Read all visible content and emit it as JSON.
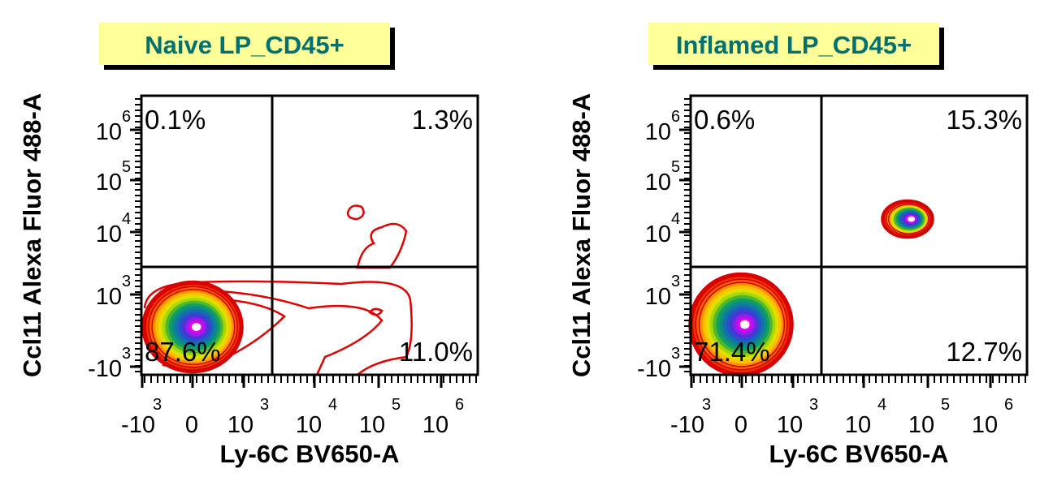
{
  "chart_data": [
    {
      "type": "contour",
      "title": "Naive LP_CD45+",
      "xlabel": "Ly-6C BV650-A",
      "ylabel": "Ccl11 Alexa Fluor 488-A",
      "x_scale": "biexponential",
      "y_scale": "biexponential",
      "x_ticks": [
        {
          "base": "-10",
          "exp": "3"
        },
        {
          "base": "0",
          "exp": ""
        },
        {
          "base": "10",
          "exp": "3"
        },
        {
          "base": "10",
          "exp": "4"
        },
        {
          "base": "10",
          "exp": "5"
        },
        {
          "base": "10",
          "exp": "6"
        }
      ],
      "y_ticks": [
        {
          "base": "-10",
          "exp": "3"
        },
        {
          "base": "10",
          "exp": "3"
        },
        {
          "base": "10",
          "exp": "4"
        },
        {
          "base": "10",
          "exp": "5"
        },
        {
          "base": "10",
          "exp": "6"
        }
      ],
      "quadrants": {
        "top_left": "0.1%",
        "top_right": "1.3%",
        "bottom_left": "87.6%",
        "bottom_right": "11.0%"
      }
    },
    {
      "type": "contour",
      "title": "Inflamed LP_CD45+",
      "xlabel": "Ly-6C BV650-A",
      "ylabel": "Ccl11 Alexa Fluor 488-A",
      "x_scale": "biexponential",
      "y_scale": "biexponential",
      "x_ticks": [
        {
          "base": "-10",
          "exp": "3"
        },
        {
          "base": "0",
          "exp": ""
        },
        {
          "base": "10",
          "exp": "3"
        },
        {
          "base": "10",
          "exp": "4"
        },
        {
          "base": "10",
          "exp": "5"
        },
        {
          "base": "10",
          "exp": "6"
        }
      ],
      "y_ticks": [
        {
          "base": "-10",
          "exp": "3"
        },
        {
          "base": "10",
          "exp": "3"
        },
        {
          "base": "10",
          "exp": "4"
        },
        {
          "base": "10",
          "exp": "5"
        },
        {
          "base": "10",
          "exp": "6"
        }
      ],
      "quadrants": {
        "top_left": "0.6%",
        "top_right": "15.3%",
        "bottom_left": "71.4%",
        "bottom_right": "12.7%"
      }
    }
  ],
  "colors": {
    "title_bg": "#ffff99",
    "title_text": "#007070",
    "contour_outer": "#e00000"
  }
}
